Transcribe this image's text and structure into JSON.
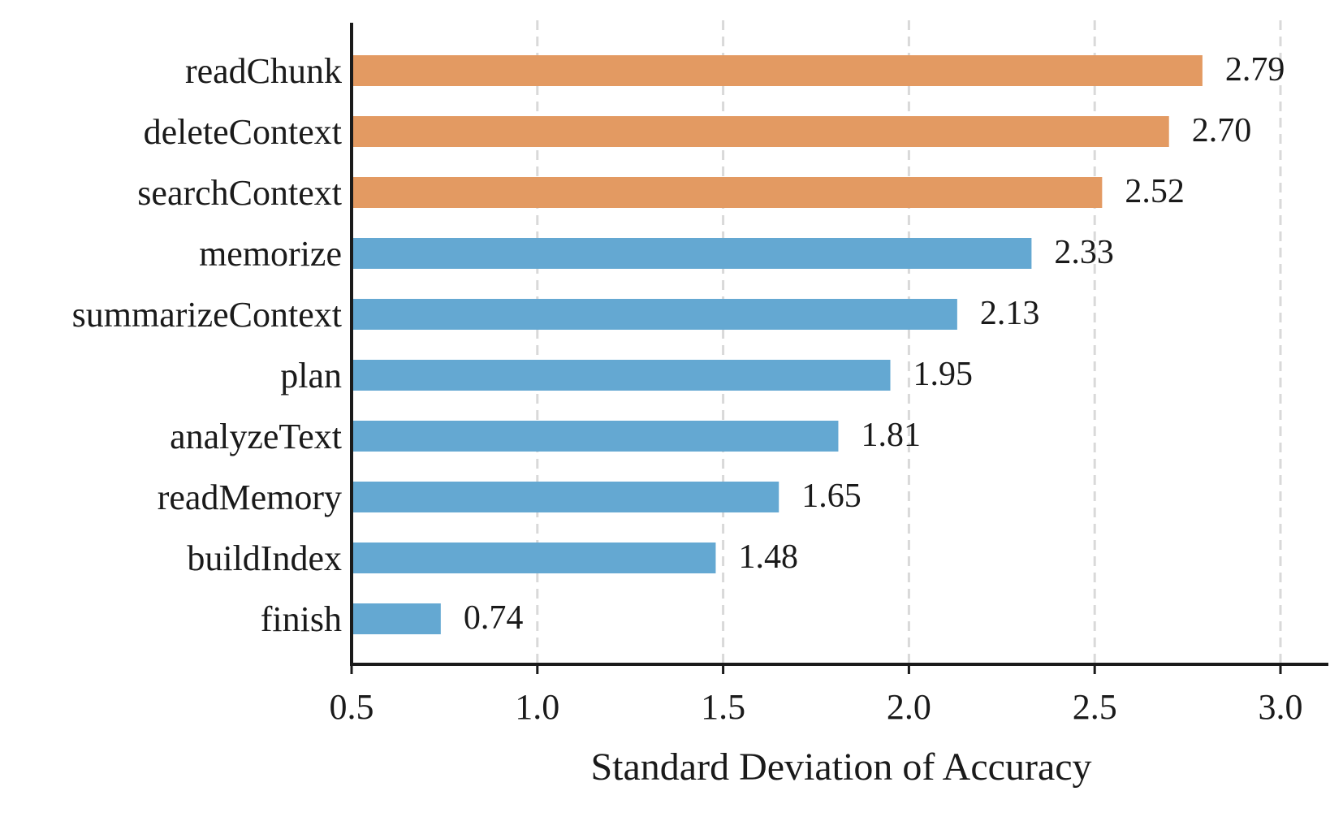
{
  "chart_data": {
    "type": "bar",
    "orientation": "horizontal",
    "title": "",
    "xlabel": "Standard Deviation of Accuracy",
    "ylabel": "",
    "xlim": [
      0.5,
      3.0
    ],
    "xticks": [
      0.5,
      1.0,
      1.5,
      2.0,
      2.5,
      3.0
    ],
    "xtick_labels": [
      "0.5",
      "1.0",
      "1.5",
      "2.0",
      "2.5",
      "3.0"
    ],
    "grid": "x, dashed",
    "colors": {
      "highlight": "#E39A62",
      "default": "#64A8D2",
      "axis": "#1a1a1a",
      "grid": "#d9d9d9"
    },
    "bars": [
      {
        "label": "readChunk",
        "value": 2.79,
        "value_label": "2.79",
        "group": "highlight"
      },
      {
        "label": "deleteContext",
        "value": 2.7,
        "value_label": "2.70",
        "group": "highlight"
      },
      {
        "label": "searchContext",
        "value": 2.52,
        "value_label": "2.52",
        "group": "highlight"
      },
      {
        "label": "memorize",
        "value": 2.33,
        "value_label": "2.33",
        "group": "default"
      },
      {
        "label": "summarizeContext",
        "value": 2.13,
        "value_label": "2.13",
        "group": "default"
      },
      {
        "label": "plan",
        "value": 1.95,
        "value_label": "1.95",
        "group": "default"
      },
      {
        "label": "analyzeText",
        "value": 1.81,
        "value_label": "1.81",
        "group": "default"
      },
      {
        "label": "readMemory",
        "value": 1.65,
        "value_label": "1.65",
        "group": "default"
      },
      {
        "label": "buildIndex",
        "value": 1.48,
        "value_label": "1.48",
        "group": "default"
      },
      {
        "label": "finish",
        "value": 0.74,
        "value_label": "0.74",
        "group": "default"
      }
    ]
  }
}
